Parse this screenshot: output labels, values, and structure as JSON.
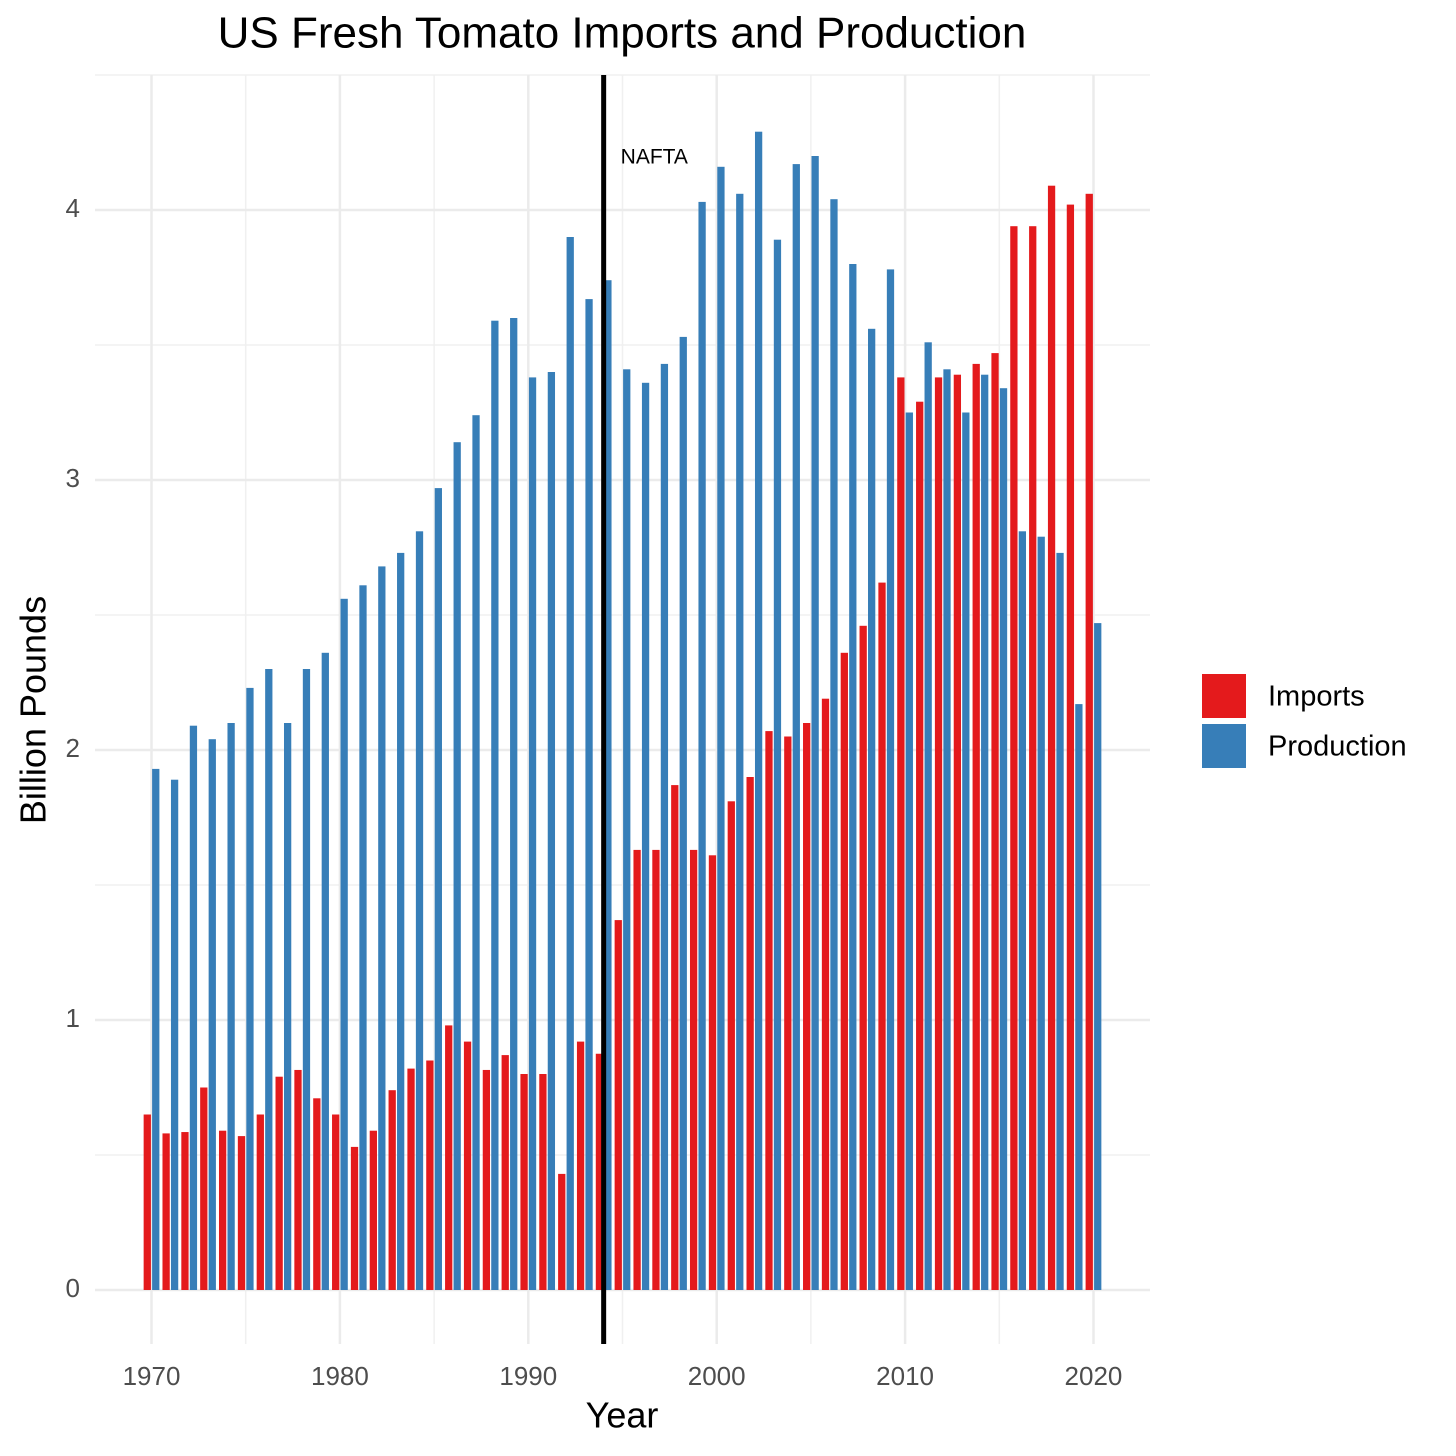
{
  "chart_data": {
    "type": "bar",
    "title": "US Fresh Tomato Imports and Production",
    "x_label": "Year",
    "y_label": "Billion Pounds",
    "x": [
      1970,
      1971,
      1972,
      1973,
      1974,
      1975,
      1976,
      1977,
      1978,
      1979,
      1980,
      1981,
      1982,
      1983,
      1984,
      1985,
      1986,
      1987,
      1988,
      1989,
      1990,
      1991,
      1992,
      1993,
      1994,
      1995,
      1996,
      1997,
      1998,
      1999,
      2000,
      2001,
      2002,
      2003,
      2004,
      2005,
      2006,
      2007,
      2008,
      2009,
      2010,
      2011,
      2012,
      2013,
      2014,
      2015,
      2016,
      2017,
      2018,
      2019,
      2020
    ],
    "series": [
      {
        "name": "Imports",
        "color": "#e41a1c",
        "values": [
          0.65,
          0.58,
          0.585,
          0.75,
          0.59,
          0.57,
          0.65,
          0.79,
          0.815,
          0.71,
          0.65,
          0.53,
          0.59,
          0.74,
          0.82,
          0.85,
          0.98,
          0.92,
          0.815,
          0.87,
          0.8,
          0.8,
          0.43,
          0.92,
          0.875,
          1.37,
          1.63,
          1.63,
          1.87,
          1.63,
          1.61,
          1.81,
          1.9,
          2.07,
          2.05,
          2.1,
          2.19,
          2.36,
          2.46,
          2.62,
          3.38,
          3.29,
          3.38,
          3.39,
          3.43,
          3.47,
          3.94,
          3.94,
          4.09,
          4.02,
          4.06
        ]
      },
      {
        "name": "Production",
        "color": "#377eb8",
        "values": [
          1.93,
          1.89,
          2.09,
          2.04,
          2.1,
          2.23,
          2.3,
          2.1,
          2.3,
          2.36,
          2.56,
          2.61,
          2.68,
          2.73,
          2.81,
          2.97,
          3.14,
          3.24,
          3.59,
          3.6,
          3.38,
          3.4,
          3.9,
          3.67,
          3.74,
          3.41,
          3.36,
          3.43,
          3.53,
          4.03,
          4.16,
          4.06,
          4.29,
          3.89,
          4.17,
          4.2,
          4.04,
          3.8,
          3.56,
          3.78,
          3.25,
          3.51,
          3.41,
          3.25,
          3.39,
          3.34,
          2.81,
          2.79,
          2.73,
          2.17,
          2.47
        ]
      }
    ],
    "xlim": [
      1967,
      2023
    ],
    "xticks": [
      1970,
      1980,
      1990,
      2000,
      2010,
      2020
    ],
    "ylim": [
      -0.2,
      4.5
    ],
    "yticks": [
      0,
      1,
      2,
      3,
      4
    ],
    "grid": true,
    "legend": "right",
    "vline": {
      "x": 1994,
      "label": "NAFTA",
      "color": "#000000"
    }
  }
}
